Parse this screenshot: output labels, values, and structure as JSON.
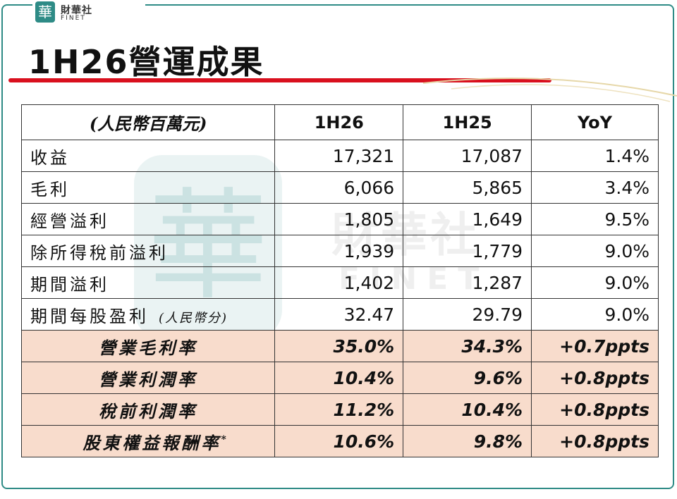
{
  "logo": {
    "seal_char": "華",
    "name_cn": "財華社",
    "name_en": "FINET"
  },
  "title": "1H26營運成果",
  "watermark": {
    "seal_char": "華",
    "name_cn": "財華社",
    "name_en": "FINET"
  },
  "table": {
    "unit_header": "(人民幣百萬元)",
    "columns": [
      "1H26",
      "1H25",
      "YoY"
    ],
    "rows": [
      {
        "label": "收益",
        "values": [
          "17,321",
          "17,087",
          "1.4%"
        ]
      },
      {
        "label": "毛利",
        "values": [
          "6,066",
          "5,865",
          "3.4%"
        ]
      },
      {
        "label": "經營溢利",
        "values": [
          "1,805",
          "1,649",
          "9.5%"
        ]
      },
      {
        "label": "除所得稅前溢利",
        "values": [
          "1,939",
          "1,779",
          "9.0%"
        ]
      },
      {
        "label": "期間溢利",
        "values": [
          "1,402",
          "1,287",
          "9.0%"
        ]
      },
      {
        "label": "期間每股盈利",
        "sublabel": "(人民幣分)",
        "values": [
          "32.47",
          "29.79",
          "9.0%"
        ]
      }
    ],
    "ratio_rows": [
      {
        "label": "營業毛利率",
        "values": [
          "35.0%",
          "34.3%",
          "+0.7ppts"
        ]
      },
      {
        "label": "營業利潤率",
        "values": [
          "10.4%",
          "9.6%",
          "+0.8ppts"
        ]
      },
      {
        "label": "稅前利潤率",
        "values": [
          "11.2%",
          "10.4%",
          "+0.8ppts"
        ]
      },
      {
        "label": "股東權益報酬率",
        "superscript": "*",
        "values": [
          "10.6%",
          "9.8%",
          "+0.8ppts"
        ]
      }
    ]
  },
  "colors": {
    "accent_red": "#d9101e",
    "frame_teal": "#2e8b86",
    "highlight_row": "#f8dccc"
  }
}
